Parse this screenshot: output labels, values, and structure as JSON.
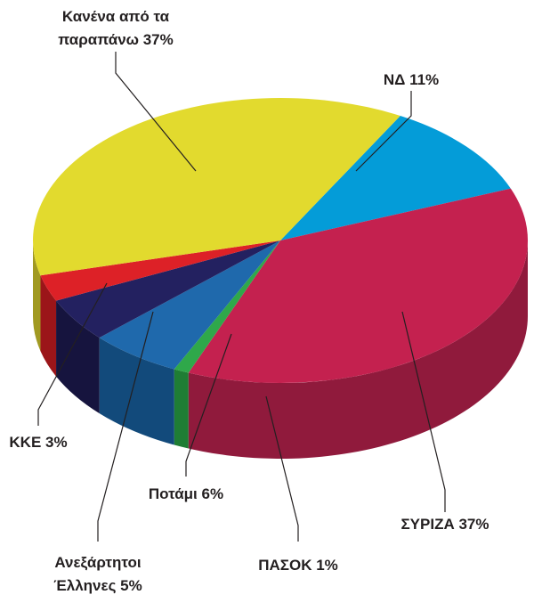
{
  "chart_data": {
    "type": "pie",
    "title": "",
    "slices": [
      {
        "key": "nd",
        "label": "ΝΔ 11%",
        "value": 11,
        "color": "#049cd8",
        "side": "#037aa9"
      },
      {
        "key": "syriza",
        "label": "ΣΥΡΙΖΑ 37%",
        "value": 37,
        "color": "#c4214f",
        "side": "#901a3c"
      },
      {
        "key": "pasok",
        "label": "ΠΑΣΟΚ 1%",
        "value": 1,
        "color": "#2fa84a",
        "side": "#1f7d34"
      },
      {
        "key": "potami",
        "label": "Ποτάμι 6%",
        "value": 6,
        "color": "#1f69ac",
        "side": "#124a7b"
      },
      {
        "key": "anel",
        "label": [
          "Ανεξάρτητοι",
          "Έλληνες 5%"
        ],
        "value": 5,
        "color": "#232160",
        "side": "#16143e"
      },
      {
        "key": "kke",
        "label": "ΚΚΕ 3%",
        "value": 3,
        "color": "#dd2127",
        "side": "#9b1519"
      },
      {
        "key": "kanena",
        "label": [
          "Κανένα από τα",
          "παραπάνω 37%"
        ],
        "value": 37,
        "color": "#e2da2e",
        "side": "#a19a22"
      }
    ]
  }
}
